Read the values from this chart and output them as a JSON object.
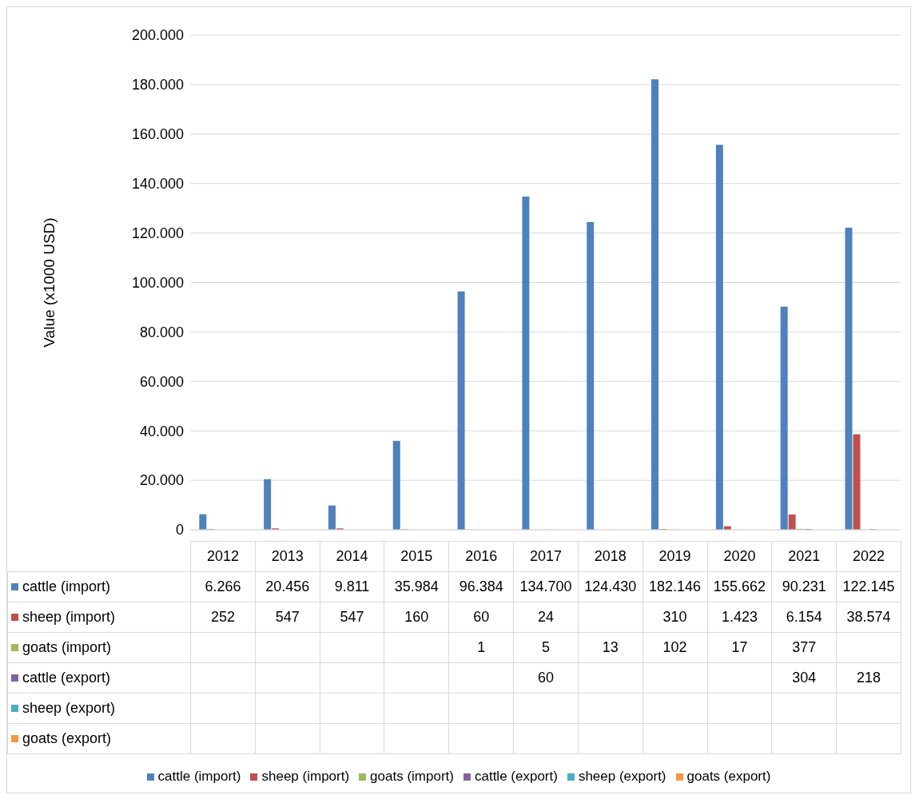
{
  "chart_data": {
    "type": "bar",
    "ylabel": "Value (x1000 USD)",
    "categories": [
      "2012",
      "2013",
      "2014",
      "2015",
      "2016",
      "2017",
      "2018",
      "2019",
      "2020",
      "2021",
      "2022"
    ],
    "series": [
      {
        "name": "cattle (import)",
        "color": "#4f81bd",
        "values": [
          6266,
          20456,
          9811,
          35984,
          96384,
          134700,
          124430,
          182146,
          155662,
          90231,
          122145
        ],
        "value_labels": [
          "6.266",
          "20.456",
          "9.811",
          "35.984",
          "96.384",
          "134.700",
          "124.430",
          "182.146",
          "155.662",
          "90.231",
          "122.145"
        ]
      },
      {
        "name": "sheep (import)",
        "color": "#c0504d",
        "values": [
          252,
          547,
          547,
          160,
          60,
          24,
          null,
          310,
          1423,
          6154,
          38574
        ],
        "value_labels": [
          "252",
          "547",
          "547",
          "160",
          "60",
          "24",
          null,
          "310",
          "1.423",
          "6.154",
          "38.574"
        ]
      },
      {
        "name": "goats (import)",
        "color": "#9bbb59",
        "values": [
          null,
          null,
          null,
          null,
          1,
          5,
          13,
          102,
          17,
          377,
          null
        ],
        "value_labels": [
          null,
          null,
          null,
          null,
          "1",
          "5",
          "13",
          "102",
          "17",
          "377",
          null
        ]
      },
      {
        "name": "cattle (export)",
        "color": "#8064a2",
        "values": [
          null,
          null,
          null,
          null,
          null,
          60,
          null,
          null,
          null,
          304,
          218
        ],
        "value_labels": [
          null,
          null,
          null,
          null,
          null,
          "60",
          null,
          null,
          null,
          "304",
          "218"
        ]
      },
      {
        "name": "sheep (export)",
        "color": "#4bacc6",
        "values": [
          null,
          null,
          null,
          null,
          null,
          null,
          null,
          null,
          null,
          null,
          null
        ],
        "value_labels": [
          null,
          null,
          null,
          null,
          null,
          null,
          null,
          null,
          null,
          null,
          null
        ]
      },
      {
        "name": "goats (export)",
        "color": "#f79646",
        "values": [
          null,
          null,
          null,
          null,
          null,
          null,
          null,
          null,
          null,
          null,
          null
        ],
        "value_labels": [
          null,
          null,
          null,
          null,
          null,
          null,
          null,
          null,
          null,
          null,
          null
        ]
      }
    ],
    "ylim": [
      0,
      200000
    ],
    "yticks": [
      0,
      {
        "value": 20000,
        "label": "20.000"
      },
      {
        "value": 40000,
        "label": "40.000"
      },
      {
        "value": 60000,
        "label": "60.000"
      },
      {
        "value": 80000,
        "label": "80.000"
      },
      {
        "value": 100000,
        "label": "100.000"
      },
      {
        "value": 120000,
        "label": "120.000"
      },
      {
        "value": 140000,
        "label": "140.000"
      },
      {
        "value": 160000,
        "label": "160.000"
      },
      {
        "value": 180000,
        "label": "180.000"
      },
      {
        "value": 200000,
        "label": "200.000"
      }
    ],
    "grid": "y",
    "legend": "bottom"
  }
}
